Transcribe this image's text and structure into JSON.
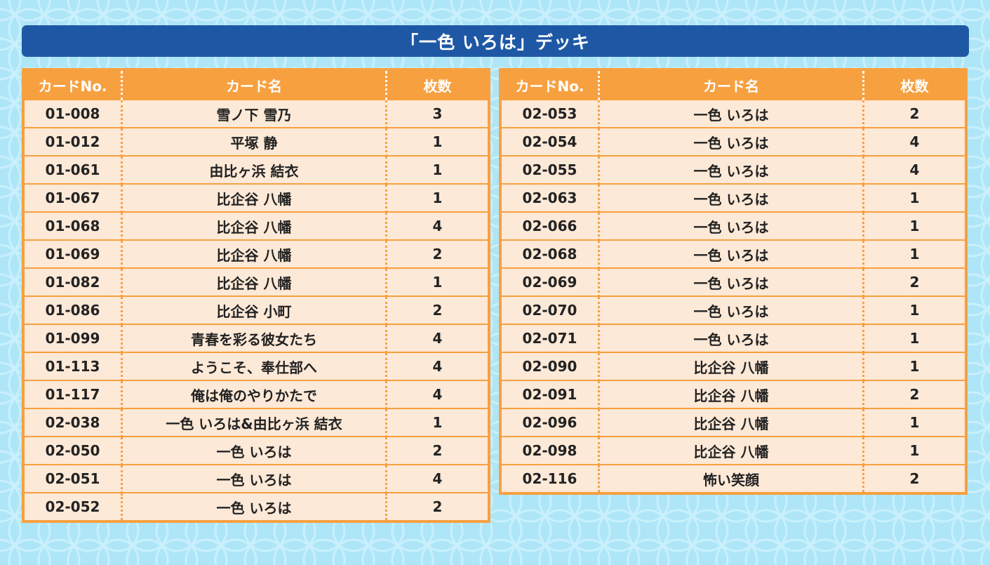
{
  "title": "「一色 いろは」デッキ",
  "headers": {
    "no": "カードNo.",
    "name": "カード名",
    "count": "枚数"
  },
  "left_rows": [
    {
      "no": "01-008",
      "name": "雪ノ下 雪乃",
      "count": "3"
    },
    {
      "no": "01-012",
      "name": "平塚 静",
      "count": "1"
    },
    {
      "no": "01-061",
      "name": "由比ヶ浜 結衣",
      "count": "1"
    },
    {
      "no": "01-067",
      "name": "比企谷 八幡",
      "count": "1"
    },
    {
      "no": "01-068",
      "name": "比企谷 八幡",
      "count": "4"
    },
    {
      "no": "01-069",
      "name": "比企谷 八幡",
      "count": "2"
    },
    {
      "no": "01-082",
      "name": "比企谷 八幡",
      "count": "1"
    },
    {
      "no": "01-086",
      "name": "比企谷 小町",
      "count": "2"
    },
    {
      "no": "01-099",
      "name": "青春を彩る彼女たち",
      "count": "4"
    },
    {
      "no": "01-113",
      "name": "ようこそ、奉仕部へ",
      "count": "4"
    },
    {
      "no": "01-117",
      "name": "俺は俺のやりかたで",
      "count": "4"
    },
    {
      "no": "02-038",
      "name": "一色 いろは&由比ヶ浜 結衣",
      "count": "1"
    },
    {
      "no": "02-050",
      "name": "一色 いろは",
      "count": "2"
    },
    {
      "no": "02-051",
      "name": "一色 いろは",
      "count": "4"
    },
    {
      "no": "02-052",
      "name": "一色 いろは",
      "count": "2"
    }
  ],
  "right_rows": [
    {
      "no": "02-053",
      "name": "一色 いろは",
      "count": "2"
    },
    {
      "no": "02-054",
      "name": "一色 いろは",
      "count": "4"
    },
    {
      "no": "02-055",
      "name": "一色 いろは",
      "count": "4"
    },
    {
      "no": "02-063",
      "name": "一色 いろは",
      "count": "1"
    },
    {
      "no": "02-066",
      "name": "一色 いろは",
      "count": "1"
    },
    {
      "no": "02-068",
      "name": "一色 いろは",
      "count": "1"
    },
    {
      "no": "02-069",
      "name": "一色 いろは",
      "count": "2"
    },
    {
      "no": "02-070",
      "name": "一色 いろは",
      "count": "1"
    },
    {
      "no": "02-071",
      "name": "一色 いろは",
      "count": "1"
    },
    {
      "no": "02-090",
      "name": "比企谷 八幡",
      "count": "1"
    },
    {
      "no": "02-091",
      "name": "比企谷 八幡",
      "count": "2"
    },
    {
      "no": "02-096",
      "name": "比企谷 八幡",
      "count": "1"
    },
    {
      "no": "02-098",
      "name": "比企谷 八幡",
      "count": "1"
    },
    {
      "no": "02-116",
      "name": "怖い笑顔",
      "count": "2"
    }
  ],
  "colors": {
    "title_bg": "#1e58a5",
    "table_header": "#f7a040",
    "cell_bg": "#fde9d7",
    "background": "#aee6f8"
  }
}
